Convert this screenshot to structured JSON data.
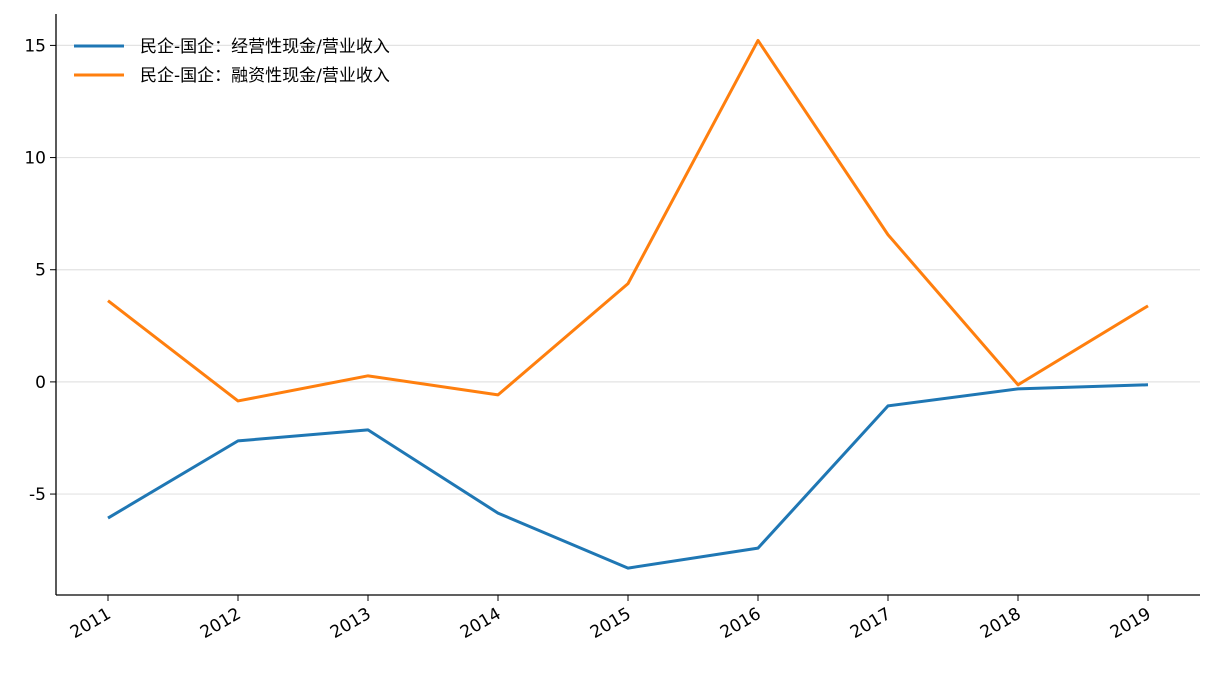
{
  "chart_data": {
    "type": "line",
    "x": [
      2011,
      2012,
      2013,
      2014,
      2015,
      2016,
      2017,
      2018,
      2019
    ],
    "series": [
      {
        "name": "民企-国企：经营性现金/营业收入",
        "color": "#1f77b4",
        "values": [
          -6.07,
          -2.63,
          -2.14,
          -5.85,
          -8.3,
          -7.41,
          -1.07,
          -0.31,
          -0.13
        ]
      },
      {
        "name": "民企-国企：融资性现金/营业收入",
        "color": "#ff7f0e",
        "values": [
          3.62,
          -0.85,
          0.27,
          -0.58,
          4.38,
          15.22,
          6.56,
          -0.13,
          3.39
        ]
      }
    ],
    "xlim": [
      2010.6,
      2019.4
    ],
    "xticks": [
      2011,
      2012,
      2013,
      2014,
      2015,
      2016,
      2017,
      2018,
      2019
    ],
    "ylim": [
      -9.5,
      16.4
    ],
    "yticks": [
      -5,
      0,
      5,
      10,
      15
    ],
    "grid": true,
    "legend": "upper-left"
  }
}
